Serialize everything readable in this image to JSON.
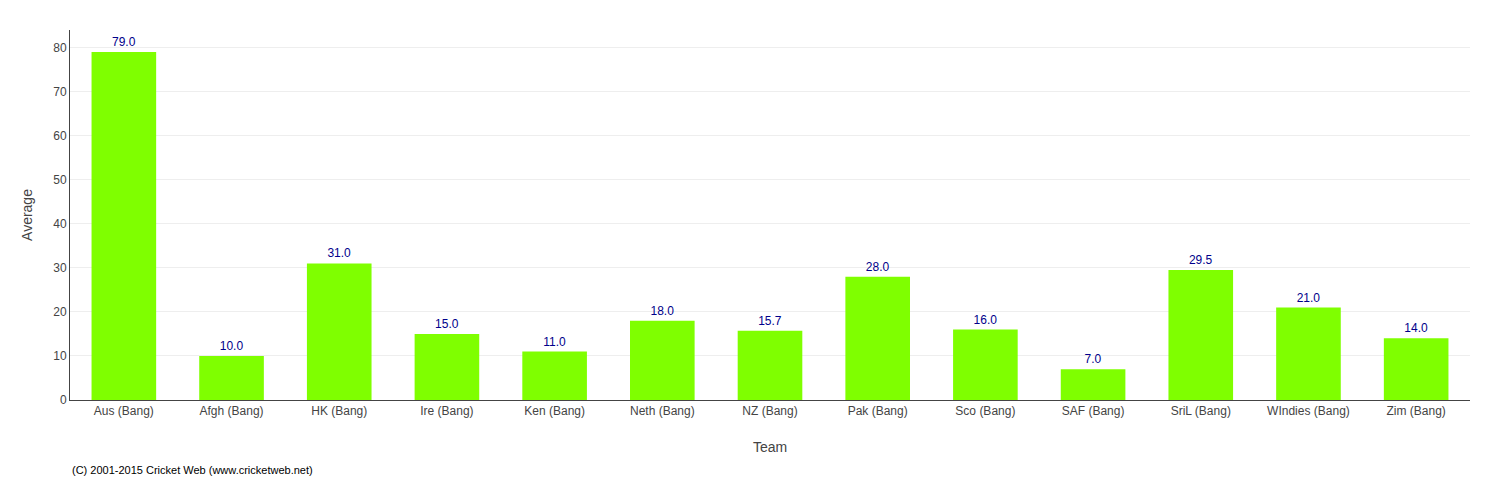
{
  "chart_data": {
    "type": "bar",
    "categories": [
      "Aus (Bang)",
      "Afgh (Bang)",
      "HK (Bang)",
      "Ire (Bang)",
      "Ken (Bang)",
      "Neth (Bang)",
      "NZ (Bang)",
      "Pak (Bang)",
      "Sco (Bang)",
      "SAF (Bang)",
      "SriL (Bang)",
      "WIndies (Bang)",
      "Zim (Bang)"
    ],
    "values": [
      79.0,
      10.0,
      31.0,
      15.0,
      11.0,
      18.0,
      15.7,
      28.0,
      16.0,
      7.0,
      29.5,
      21.0,
      14.0
    ],
    "value_labels": [
      "79.0",
      "10.0",
      "31.0",
      "15.0",
      "11.0",
      "18.0",
      "15.7",
      "28.0",
      "16.0",
      "7.0",
      "29.5",
      "21.0",
      "14.0"
    ],
    "data_labels": true,
    "color": "#7FFF00",
    "xlabel": "Team",
    "ylabel": "Average",
    "ylim": [
      0,
      84
    ],
    "yticks": [
      0,
      10,
      20,
      30,
      40,
      50,
      60,
      70,
      80
    ],
    "grid": true,
    "annotations": [
      "(C) 2001-2015 Cricket Web (www.cricketweb.net)"
    ]
  }
}
